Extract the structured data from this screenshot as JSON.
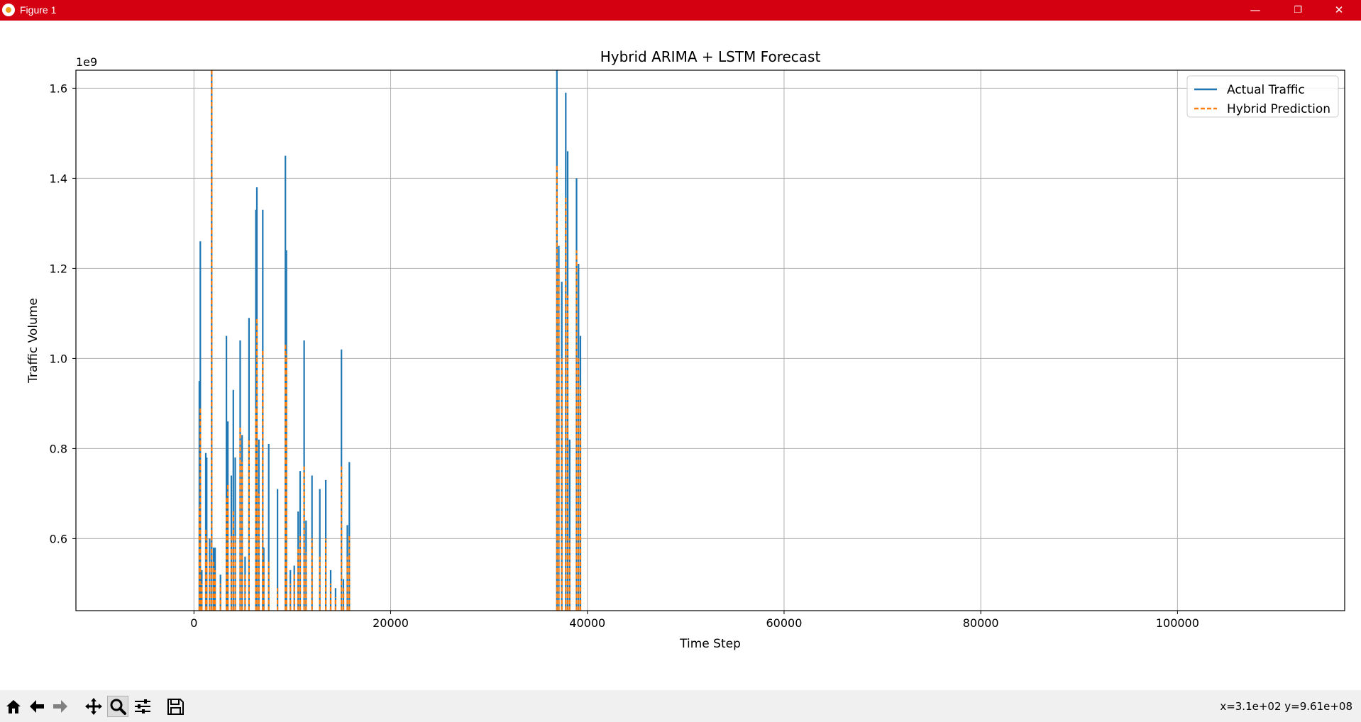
{
  "window": {
    "title": "Figure 1",
    "minimize_glyph": "—",
    "maximize_glyph": "❐",
    "close_glyph": "✕"
  },
  "toolbar": {
    "icons": [
      "home-icon",
      "back-arrow-icon",
      "forward-arrow-icon",
      "pan-icon",
      "zoom-icon",
      "configure-subplots-icon",
      "save-icon"
    ],
    "active": "zoom-icon",
    "coords_text": "x=3.1e+02 y=9.61e+08"
  },
  "colors": {
    "titlebar": "#d40012",
    "actual": "#1f77b4",
    "prediction": "#ff7f0e",
    "grid": "#b0b0b0"
  },
  "chart_data": {
    "type": "line",
    "title": "Hybrid ARIMA + LSTM Forecast",
    "xlabel": "Time Step",
    "ylabel": "Traffic Volume",
    "y_offset_label": "1e9",
    "xlim": [
      -12000,
      117000
    ],
    "ylim": [
      0.44,
      1.64
    ],
    "xticks": [
      0,
      20000,
      40000,
      60000,
      80000,
      100000
    ],
    "xtick_labels": [
      "0",
      "20000",
      "40000",
      "60000",
      "80000",
      "100000"
    ],
    "yticks": [
      0.6,
      0.8,
      1.0,
      1.2,
      1.4,
      1.6
    ],
    "ytick_labels": [
      "0.6",
      "0.8",
      "1.0",
      "1.2",
      "1.4",
      "1.6"
    ],
    "grid": true,
    "legend": "upper right",
    "series": [
      {
        "name": "Actual Traffic",
        "style": "solid",
        "color": "#1f77b4",
        "x": [
          550,
          650,
          800,
          1200,
          1300,
          1600,
          1800,
          2000,
          2150,
          2700,
          3300,
          3450,
          3800,
          4000,
          4200,
          4700,
          4900,
          5200,
          5600,
          6300,
          6400,
          6600,
          7000,
          7100,
          7600,
          8500,
          9300,
          9400,
          9800,
          10200,
          10600,
          10800,
          11200,
          11400,
          12000,
          12800,
          13400,
          13900,
          14400,
          15000,
          15200,
          15600,
          15800,
          36900,
          37100,
          37400,
          37800,
          38000,
          38200,
          38900,
          39100,
          39300
        ],
        "y": [
          0.95,
          1.26,
          0.53,
          0.79,
          0.78,
          0.6,
          1.64,
          0.58,
          0.58,
          0.52,
          1.05,
          0.86,
          0.74,
          0.93,
          0.78,
          1.04,
          0.83,
          0.56,
          1.09,
          1.33,
          1.38,
          0.82,
          1.33,
          0.58,
          0.81,
          0.71,
          1.45,
          1.24,
          0.53,
          0.54,
          0.66,
          0.75,
          1.04,
          0.64,
          0.74,
          0.71,
          0.73,
          0.53,
          0.49,
          1.02,
          0.51,
          0.63,
          0.77,
          1.64,
          1.25,
          1.17,
          1.59,
          1.46,
          0.82,
          1.4,
          1.21,
          1.05
        ]
      },
      {
        "name": "Hybrid Prediction",
        "style": "dashed",
        "color": "#ff7f0e",
        "x": [
          550,
          650,
          800,
          1200,
          1300,
          1600,
          1800,
          2000,
          2150,
          2700,
          3300,
          3450,
          3800,
          4000,
          4200,
          4700,
          4900,
          5200,
          5600,
          6300,
          6400,
          6600,
          7000,
          7100,
          7600,
          8500,
          9300,
          9400,
          9800,
          10200,
          10600,
          10800,
          11200,
          11400,
          12000,
          12800,
          13400,
          13900,
          14400,
          15000,
          15200,
          15600,
          15800,
          36900,
          37100,
          37400,
          37800,
          38000,
          38200,
          38900,
          39100,
          39300
        ],
        "y": [
          0.67,
          0.89,
          0.5,
          0.62,
          0.6,
          0.55,
          1.64,
          0.55,
          0.53,
          0.5,
          0.69,
          0.72,
          0.61,
          0.66,
          0.61,
          0.85,
          0.77,
          0.52,
          0.82,
          0.89,
          1.09,
          0.7,
          1.02,
          0.55,
          0.55,
          0.49,
          1.03,
          1.01,
          0.5,
          0.52,
          0.58,
          0.61,
          0.76,
          0.57,
          0.6,
          0.56,
          0.6,
          0.5,
          0.47,
          0.76,
          0.49,
          0.56,
          0.61,
          1.43,
          1.2,
          1.0,
          1.36,
          1.14,
          0.6,
          1.24,
          1.0,
          0.94
        ]
      }
    ]
  }
}
